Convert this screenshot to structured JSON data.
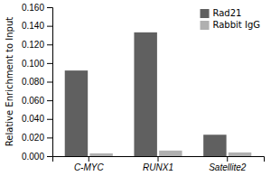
{
  "chart_data": {
    "type": "bar",
    "categories": [
      "C-MYC",
      "RUNX1",
      "Satellite2"
    ],
    "series": [
      {
        "name": "Rad21",
        "color": "#606060",
        "values": [
          0.092,
          0.133,
          0.023
        ]
      },
      {
        "name": "Rabbit IgG",
        "color": "#b0b0b0",
        "values": [
          0.003,
          0.006,
          0.004
        ]
      }
    ],
    "ylabel": "Relative Enrichment to Input",
    "ylim": [
      0.0,
      0.16
    ],
    "yticks": [
      {
        "value": 0.0,
        "label": "0.000"
      },
      {
        "value": 0.02,
        "label": "0.020"
      },
      {
        "value": 0.04,
        "label": "0.040"
      },
      {
        "value": 0.06,
        "label": "0.060"
      },
      {
        "value": 0.08,
        "label": "0.080"
      },
      {
        "value": 0.1,
        "label": "0.100"
      },
      {
        "value": 0.12,
        "label": "0.120"
      },
      {
        "value": 0.14,
        "label": "0.140"
      },
      {
        "value": 0.16,
        "label": "0.160"
      }
    ],
    "legend": "upper right",
    "grid": false
  }
}
